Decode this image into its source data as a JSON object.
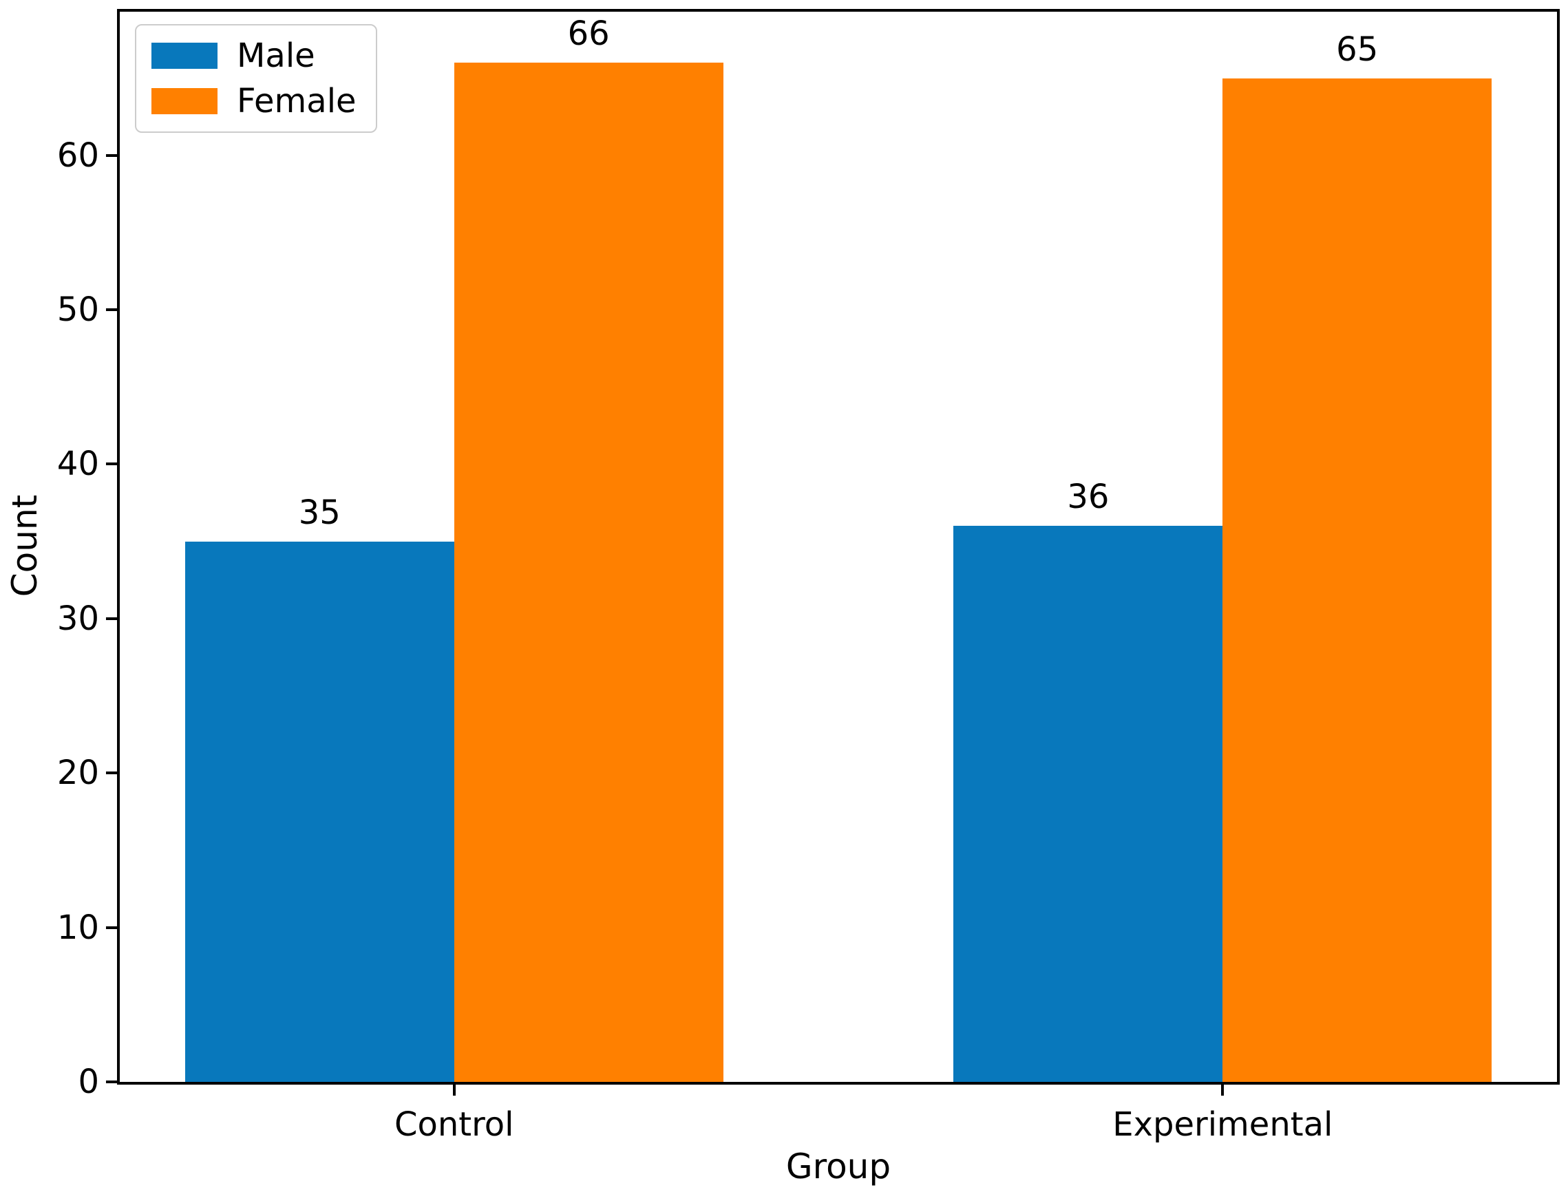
{
  "figure": {
    "background": "#ffffff",
    "axis_color": "#000000",
    "text_color": "#000000"
  },
  "chart_data": {
    "type": "bar",
    "title": "",
    "categories": [
      "Control",
      "Experimental"
    ],
    "series": [
      {
        "name": "Male",
        "color": "#0878bc",
        "values": [
          35,
          36
        ]
      },
      {
        "name": "Female",
        "color": "#ff8000",
        "values": [
          66,
          65
        ]
      }
    ],
    "xlabel": "Group",
    "ylabel": "Count",
    "yticks": [
      0,
      10,
      20,
      30,
      40,
      50,
      60
    ],
    "ylim": [
      0,
      69.3
    ],
    "xlim": [
      -0.435,
      1.435
    ],
    "bar_width": 0.35,
    "show_value_labels": true,
    "value_labels": [
      [
        35,
        36
      ],
      [
        66,
        65
      ]
    ],
    "grid": false,
    "legend": {
      "position": "upper left",
      "entries": [
        "Male",
        "Female"
      ]
    }
  }
}
